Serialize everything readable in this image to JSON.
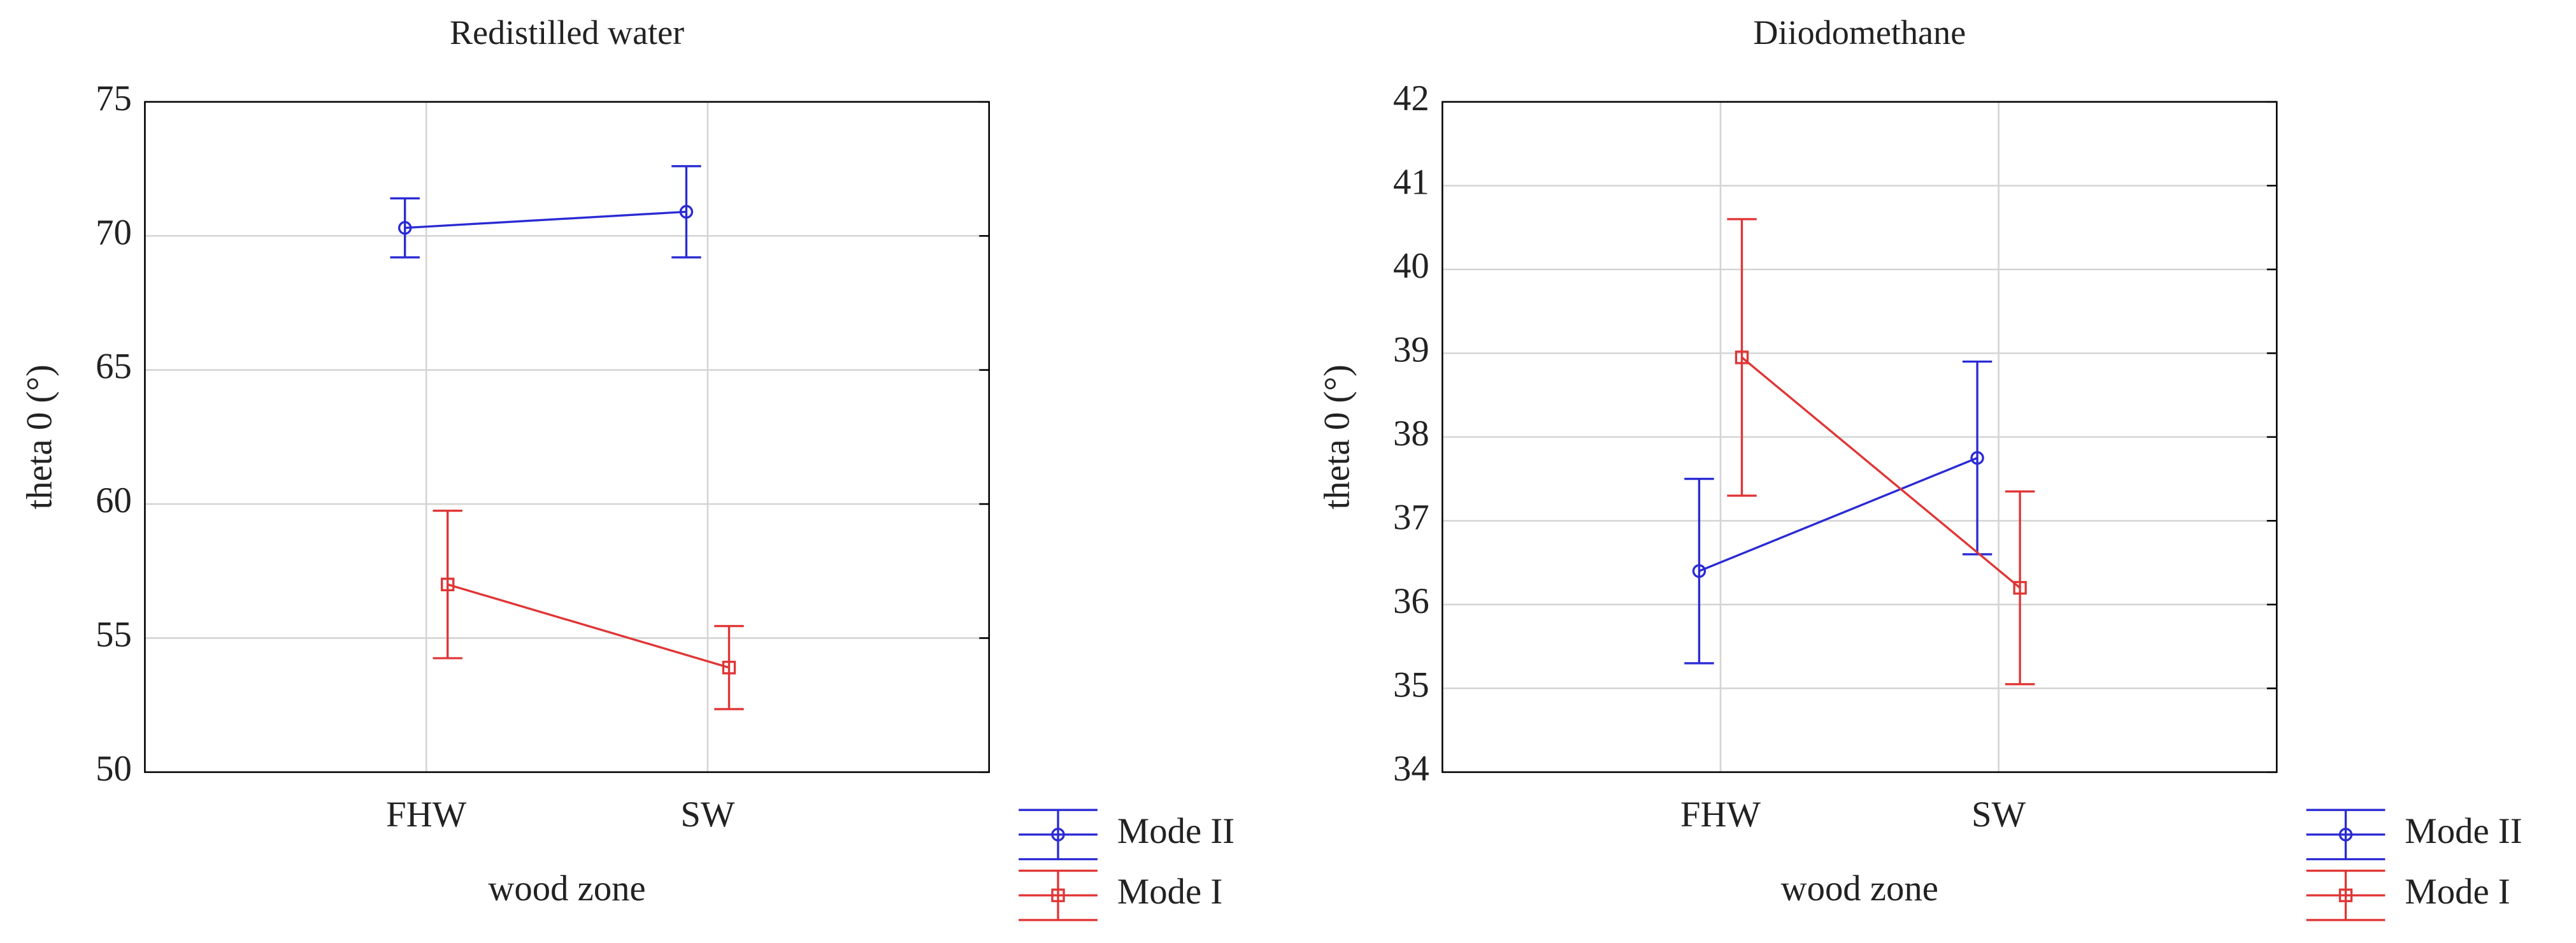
{
  "chart_data": [
    {
      "type": "line",
      "title": "Redistilled water",
      "x_label": "wood zone",
      "y_label": "theta 0 (°)",
      "categories": [
        "FHW",
        "SW"
      ],
      "ylim": [
        50,
        75
      ],
      "yticks": [
        50,
        55,
        60,
        65,
        70,
        75
      ],
      "grid": true,
      "series": [
        {
          "name": "Mode II",
          "color": "#2a2ad4",
          "marker": "circle",
          "values": [
            70.3,
            70.9
          ],
          "errors": [
            1.1,
            1.7
          ]
        },
        {
          "name": "Mode I",
          "color": "#e03535",
          "marker": "square",
          "values": [
            57.0,
            53.9
          ],
          "errors": [
            2.75,
            1.55
          ]
        }
      ]
    },
    {
      "type": "line",
      "title": "Diiodomethane",
      "x_label": "wood zone",
      "y_label": "theta 0 (°)",
      "categories": [
        "FHW",
        "SW"
      ],
      "ylim": [
        34,
        42
      ],
      "yticks": [
        34,
        35,
        36,
        37,
        38,
        39,
        40,
        41,
        42
      ],
      "grid": true,
      "series": [
        {
          "name": "Mode II",
          "color": "#2a2ad4",
          "marker": "circle",
          "values": [
            36.4,
            37.75
          ],
          "errors": [
            1.1,
            1.15
          ]
        },
        {
          "name": "Mode I",
          "color": "#e03535",
          "marker": "square",
          "values": [
            38.95,
            36.2
          ],
          "errors": [
            1.65,
            1.15
          ]
        }
      ]
    }
  ]
}
